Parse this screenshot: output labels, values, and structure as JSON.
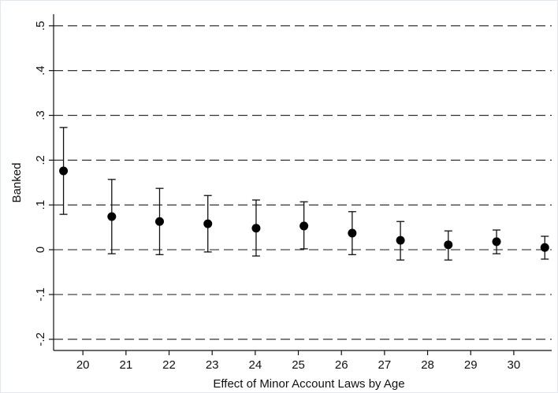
{
  "chart_data": {
    "type": "scatter",
    "x_label": "Effect of Minor Account Laws by Age",
    "y_label": "Banked",
    "series": [
      {
        "color": "#000000",
        "x": [
          19.55,
          20.67,
          21.78,
          22.9,
          24.02,
          25.13,
          26.25,
          27.37,
          28.48,
          29.6,
          30.72
        ],
        "values": [
          0.176,
          0.074,
          0.063,
          0.058,
          0.048,
          0.053,
          0.037,
          0.021,
          0.011,
          0.018,
          0.005
        ],
        "lower": [
          0.079,
          -0.009,
          -0.011,
          -0.005,
          -0.014,
          0.002,
          -0.011,
          -0.023,
          -0.023,
          -0.009,
          -0.021
        ],
        "upper": [
          0.273,
          0.157,
          0.137,
          0.121,
          0.111,
          0.107,
          0.085,
          0.063,
          0.042,
          0.044,
          0.03
        ]
      }
    ],
    "xlim": [
      19.32,
      30.88
    ],
    "xticks": [
      20,
      21,
      22,
      23,
      24,
      25,
      26,
      27,
      28,
      29,
      30
    ],
    "ylim": [
      -0.225,
      0.526
    ],
    "yticks": [
      {
        "value": -0.2,
        "label": "-.2"
      },
      {
        "value": -0.1,
        "label": "-.1"
      },
      0,
      {
        "value": 0.1,
        "label": ".1"
      },
      {
        "value": 0.2,
        "label": ".2"
      },
      {
        "value": 0.3,
        "label": ".3"
      },
      {
        "value": 0.4,
        "label": ".4"
      },
      {
        "value": 0.5,
        "label": ".5"
      }
    ],
    "grid": true,
    "grid_color": "#333333"
  }
}
